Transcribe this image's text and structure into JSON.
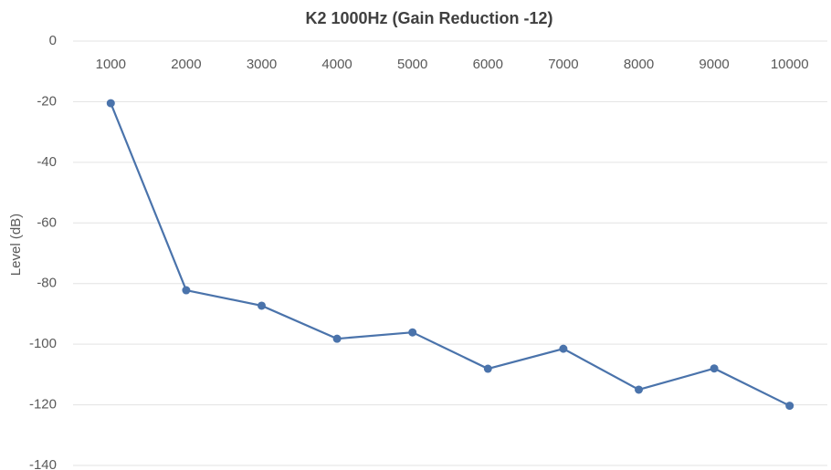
{
  "chart_data": {
    "type": "line",
    "title": "K2 1000Hz (Gain Reduction -12)",
    "y_label": "Level (dB)",
    "categories": [
      "1000",
      "2000",
      "3000",
      "4000",
      "5000",
      "6000",
      "7000",
      "8000",
      "9000",
      "10000"
    ],
    "series": [
      {
        "name": "Level",
        "color": "#4a73ab",
        "values": [
          -20.5,
          -82.2,
          -87.3,
          -98.2,
          -96.1,
          -108.1,
          -101.5,
          -115,
          -108,
          -120.3
        ]
      }
    ],
    "ylim": [
      -140,
      0
    ],
    "yticks": [
      0,
      -20,
      -40,
      -60,
      -80,
      -100,
      -120,
      -140
    ],
    "grid": true
  }
}
